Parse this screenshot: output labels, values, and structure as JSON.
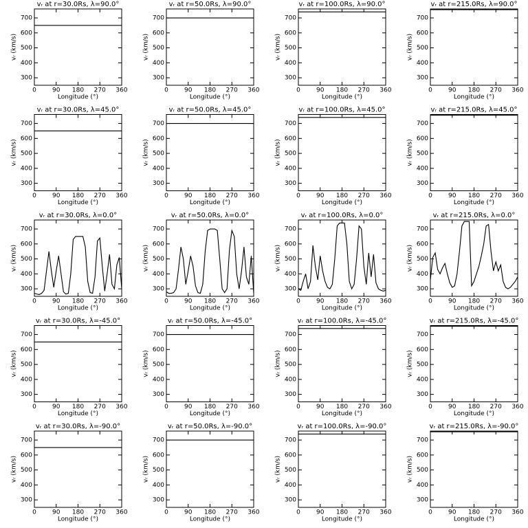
{
  "chart_data": [
    {
      "type": "line",
      "title": "vᵣ at r=30.0Rs, λ=90.0°",
      "xlabel": "Longitude (°)",
      "ylabel": "vᵣ (km/s)",
      "x": [
        0,
        360
      ],
      "values": [
        650,
        650
      ],
      "color": "#000000",
      "xlim": [
        0,
        360
      ],
      "ylim": [
        250,
        760
      ],
      "xticks": [
        0,
        90,
        180,
        270,
        360
      ],
      "yticks": [
        300,
        400,
        500,
        600,
        700
      ]
    },
    {
      "type": "line",
      "title": "vᵣ at r=50.0Rs, λ=90.0°",
      "xlabel": "Longitude (°)",
      "ylabel": "vᵣ (km/s)",
      "x": [
        0,
        360
      ],
      "values": [
        700,
        700
      ],
      "color": "#000000",
      "xlim": [
        0,
        360
      ],
      "ylim": [
        250,
        760
      ],
      "xticks": [
        0,
        90,
        180,
        270,
        360
      ],
      "yticks": [
        300,
        400,
        500,
        600,
        700
      ]
    },
    {
      "type": "line",
      "title": "vᵣ at r=100.0Rs, λ=90.0°",
      "xlabel": "Longitude (°)",
      "ylabel": "vᵣ (km/s)",
      "x": [
        0,
        360
      ],
      "values": [
        740,
        740
      ],
      "color": "#000000",
      "xlim": [
        0,
        360
      ],
      "ylim": [
        250,
        760
      ],
      "xticks": [
        0,
        90,
        180,
        270,
        360
      ],
      "yticks": [
        300,
        400,
        500,
        600,
        700
      ]
    },
    {
      "type": "line",
      "title": "vᵣ at r=215.0Rs, λ=90.0°",
      "xlabel": "Longitude (°)",
      "ylabel": "vᵣ (km/s)",
      "x": [
        0,
        360
      ],
      "values": [
        755,
        755
      ],
      "color": "#000000",
      "xlim": [
        0,
        360
      ],
      "ylim": [
        250,
        760
      ],
      "xticks": [
        0,
        90,
        180,
        270,
        360
      ],
      "yticks": [
        300,
        400,
        500,
        600,
        700
      ]
    },
    {
      "type": "line",
      "title": "vᵣ at r=30.0Rs, λ=45.0°",
      "xlabel": "Longitude (°)",
      "ylabel": "vᵣ (km/s)",
      "x": [
        0,
        360
      ],
      "values": [
        650,
        650
      ],
      "color": "#000000",
      "xlim": [
        0,
        360
      ],
      "ylim": [
        250,
        760
      ],
      "xticks": [
        0,
        90,
        180,
        270,
        360
      ],
      "yticks": [
        300,
        400,
        500,
        600,
        700
      ]
    },
    {
      "type": "line",
      "title": "vᵣ at r=50.0Rs, λ=45.0°",
      "xlabel": "Longitude (°)",
      "ylabel": "vᵣ (km/s)",
      "x": [
        0,
        360
      ],
      "values": [
        700,
        700
      ],
      "color": "#000000",
      "xlim": [
        0,
        360
      ],
      "ylim": [
        250,
        760
      ],
      "xticks": [
        0,
        90,
        180,
        270,
        360
      ],
      "yticks": [
        300,
        400,
        500,
        600,
        700
      ]
    },
    {
      "type": "line",
      "title": "vᵣ at r=100.0Rs, λ=45.0°",
      "xlabel": "Longitude (°)",
      "ylabel": "vᵣ (km/s)",
      "x": [
        0,
        360
      ],
      "values": [
        740,
        740
      ],
      "color": "#000000",
      "xlim": [
        0,
        360
      ],
      "ylim": [
        250,
        760
      ],
      "xticks": [
        0,
        90,
        180,
        270,
        360
      ],
      "yticks": [
        300,
        400,
        500,
        600,
        700
      ]
    },
    {
      "type": "line",
      "title": "vᵣ at r=215.0Rs, λ=45.0°",
      "xlabel": "Longitude (°)",
      "ylabel": "vᵣ (km/s)",
      "x": [
        0,
        360
      ],
      "values": [
        755,
        755
      ],
      "color": "#000000",
      "xlim": [
        0,
        360
      ],
      "ylim": [
        250,
        760
      ],
      "xticks": [
        0,
        90,
        180,
        270,
        360
      ],
      "yticks": [
        300,
        400,
        500,
        600,
        700
      ]
    },
    {
      "type": "line",
      "title": "vᵣ at r=30.0Rs, λ=0.0°",
      "xlabel": "Longitude (°)",
      "ylabel": "vᵣ (km/s)",
      "x": [
        0,
        10,
        20,
        30,
        40,
        50,
        60,
        70,
        80,
        90,
        100,
        110,
        120,
        130,
        140,
        150,
        160,
        170,
        180,
        190,
        200,
        210,
        220,
        230,
        240,
        250,
        260,
        270,
        280,
        290,
        300,
        310,
        320,
        330,
        340,
        350,
        360
      ],
      "values": [
        270,
        265,
        262,
        270,
        290,
        420,
        550,
        420,
        310,
        420,
        520,
        400,
        280,
        265,
        270,
        400,
        630,
        650,
        650,
        650,
        650,
        580,
        350,
        275,
        270,
        380,
        620,
        640,
        450,
        285,
        400,
        530,
        330,
        300,
        460,
        510,
        300
      ],
      "color": "#000000",
      "xlim": [
        0,
        360
      ],
      "ylim": [
        250,
        760
      ],
      "xticks": [
        0,
        90,
        180,
        270,
        360
      ],
      "yticks": [
        300,
        400,
        500,
        600,
        700
      ]
    },
    {
      "type": "line",
      "title": "vᵣ at r=50.0Rs, λ=0.0°",
      "xlabel": "Longitude (°)",
      "ylabel": "vᵣ (km/s)",
      "x": [
        0,
        10,
        20,
        30,
        40,
        50,
        60,
        70,
        80,
        90,
        100,
        110,
        120,
        130,
        140,
        150,
        160,
        170,
        180,
        190,
        200,
        210,
        220,
        230,
        240,
        250,
        260,
        270,
        280,
        290,
        300,
        310,
        320,
        330,
        340,
        350,
        360
      ],
      "values": [
        280,
        270,
        270,
        275,
        300,
        430,
        580,
        500,
        330,
        420,
        520,
        450,
        320,
        275,
        270,
        330,
        550,
        690,
        700,
        700,
        700,
        690,
        500,
        300,
        275,
        300,
        560,
        690,
        650,
        400,
        300,
        420,
        580,
        380,
        330,
        520,
        270
      ],
      "color": "#000000",
      "xlim": [
        0,
        360
      ],
      "ylim": [
        250,
        760
      ],
      "xticks": [
        0,
        90,
        180,
        270,
        360
      ],
      "yticks": [
        300,
        400,
        500,
        600,
        700
      ]
    },
    {
      "type": "line",
      "title": "vᵣ at r=100.0Rs, λ=0.0°",
      "xlabel": "Longitude (°)",
      "ylabel": "vᵣ (km/s)",
      "x": [
        0,
        10,
        20,
        30,
        40,
        50,
        60,
        70,
        80,
        90,
        100,
        110,
        120,
        130,
        140,
        150,
        160,
        170,
        180,
        190,
        200,
        210,
        220,
        230,
        240,
        250,
        260,
        270,
        280,
        290,
        300,
        310,
        320,
        330,
        340,
        350,
        360
      ],
      "values": [
        300,
        290,
        350,
        400,
        300,
        350,
        590,
        450,
        360,
        520,
        420,
        350,
        310,
        300,
        330,
        500,
        720,
        740,
        740,
        740,
        600,
        350,
        300,
        330,
        500,
        720,
        700,
        450,
        330,
        540,
        380,
        530,
        340,
        300,
        290,
        285,
        290
      ],
      "color": "#000000",
      "xlim": [
        0,
        360
      ],
      "ylim": [
        250,
        760
      ],
      "xticks": [
        0,
        90,
        180,
        270,
        360
      ],
      "yticks": [
        300,
        400,
        500,
        600,
        700
      ]
    },
    {
      "type": "line",
      "title": "vᵣ at r=215.0Rs, λ=0.0°",
      "xlabel": "Longitude (°)",
      "ylabel": "vᵣ (km/s)",
      "x": [
        0,
        10,
        20,
        30,
        40,
        50,
        60,
        70,
        80,
        90,
        100,
        110,
        120,
        130,
        140,
        150,
        160,
        170,
        180,
        190,
        200,
        210,
        220,
        230,
        240,
        250,
        260,
        270,
        280,
        290,
        300,
        310,
        320,
        330,
        340,
        350,
        360
      ],
      "values": [
        360,
        510,
        540,
        430,
        400,
        440,
        470,
        400,
        340,
        310,
        320,
        400,
        550,
        720,
        750,
        750,
        750,
        320,
        350,
        400,
        450,
        520,
        600,
        720,
        730,
        550,
        420,
        480,
        420,
        460,
        350,
        310,
        300,
        310,
        330,
        350,
        380
      ],
      "color": "#000000",
      "xlim": [
        0,
        360
      ],
      "ylim": [
        250,
        760
      ],
      "xticks": [
        0,
        90,
        180,
        270,
        360
      ],
      "yticks": [
        300,
        400,
        500,
        600,
        700
      ]
    },
    {
      "type": "line",
      "title": "vᵣ at r=30.0Rs, λ=-45.0°",
      "xlabel": "Longitude (°)",
      "ylabel": "vᵣ (km/s)",
      "x": [
        0,
        360
      ],
      "values": [
        650,
        650
      ],
      "color": "#000000",
      "xlim": [
        0,
        360
      ],
      "ylim": [
        250,
        760
      ],
      "xticks": [
        0,
        90,
        180,
        270,
        360
      ],
      "yticks": [
        300,
        400,
        500,
        600,
        700
      ]
    },
    {
      "type": "line",
      "title": "vᵣ at r=50.0Rs, λ=-45.0°",
      "xlabel": "Longitude (°)",
      "ylabel": "vᵣ (km/s)",
      "x": [
        0,
        360
      ],
      "values": [
        700,
        700
      ],
      "color": "#000000",
      "xlim": [
        0,
        360
      ],
      "ylim": [
        250,
        760
      ],
      "xticks": [
        0,
        90,
        180,
        270,
        360
      ],
      "yticks": [
        300,
        400,
        500,
        600,
        700
      ]
    },
    {
      "type": "line",
      "title": "vᵣ at r=100.0Rs, λ=-45.0°",
      "xlabel": "Longitude (°)",
      "ylabel": "vᵣ (km/s)",
      "x": [
        0,
        360
      ],
      "values": [
        740,
        740
      ],
      "color": "#000000",
      "xlim": [
        0,
        360
      ],
      "ylim": [
        250,
        760
      ],
      "xticks": [
        0,
        90,
        180,
        270,
        360
      ],
      "yticks": [
        300,
        400,
        500,
        600,
        700
      ]
    },
    {
      "type": "line",
      "title": "vᵣ at r=215.0Rs, λ=-45.0°",
      "xlabel": "Longitude (°)",
      "ylabel": "vᵣ (km/s)",
      "x": [
        0,
        360
      ],
      "values": [
        755,
        755
      ],
      "color": "#000000",
      "xlim": [
        0,
        360
      ],
      "ylim": [
        250,
        760
      ],
      "xticks": [
        0,
        90,
        180,
        270,
        360
      ],
      "yticks": [
        300,
        400,
        500,
        600,
        700
      ]
    },
    {
      "type": "line",
      "title": "vᵣ at r=30.0Rs, λ=-90.0°",
      "xlabel": "Longitude (°)",
      "ylabel": "vᵣ (km/s)",
      "x": [
        0,
        360
      ],
      "values": [
        650,
        650
      ],
      "color": "#000000",
      "xlim": [
        0,
        360
      ],
      "ylim": [
        250,
        760
      ],
      "xticks": [
        0,
        90,
        180,
        270,
        360
      ],
      "yticks": [
        300,
        400,
        500,
        600,
        700
      ]
    },
    {
      "type": "line",
      "title": "vᵣ at r=50.0Rs, λ=-90.0°",
      "xlabel": "Longitude (°)",
      "ylabel": "vᵣ (km/s)",
      "x": [
        0,
        360
      ],
      "values": [
        700,
        700
      ],
      "color": "#000000",
      "xlim": [
        0,
        360
      ],
      "ylim": [
        250,
        760
      ],
      "xticks": [
        0,
        90,
        180,
        270,
        360
      ],
      "yticks": [
        300,
        400,
        500,
        600,
        700
      ]
    },
    {
      "type": "line",
      "title": "vᵣ at r=100.0Rs, λ=-90.0°",
      "xlabel": "Longitude (°)",
      "ylabel": "vᵣ (km/s)",
      "x": [
        0,
        360
      ],
      "values": [
        740,
        740
      ],
      "color": "#000000",
      "xlim": [
        0,
        360
      ],
      "ylim": [
        250,
        760
      ],
      "xticks": [
        0,
        90,
        180,
        270,
        360
      ],
      "yticks": [
        300,
        400,
        500,
        600,
        700
      ]
    },
    {
      "type": "line",
      "title": "vᵣ at r=215.0Rs, λ=-90.0°",
      "xlabel": "Longitude (°)",
      "ylabel": "vᵣ (km/s)",
      "x": [
        0,
        360
      ],
      "values": [
        755,
        755
      ],
      "color": "#000000",
      "xlim": [
        0,
        360
      ],
      "ylim": [
        250,
        760
      ],
      "xticks": [
        0,
        90,
        180,
        270,
        360
      ],
      "yticks": [
        300,
        400,
        500,
        600,
        700
      ]
    }
  ]
}
